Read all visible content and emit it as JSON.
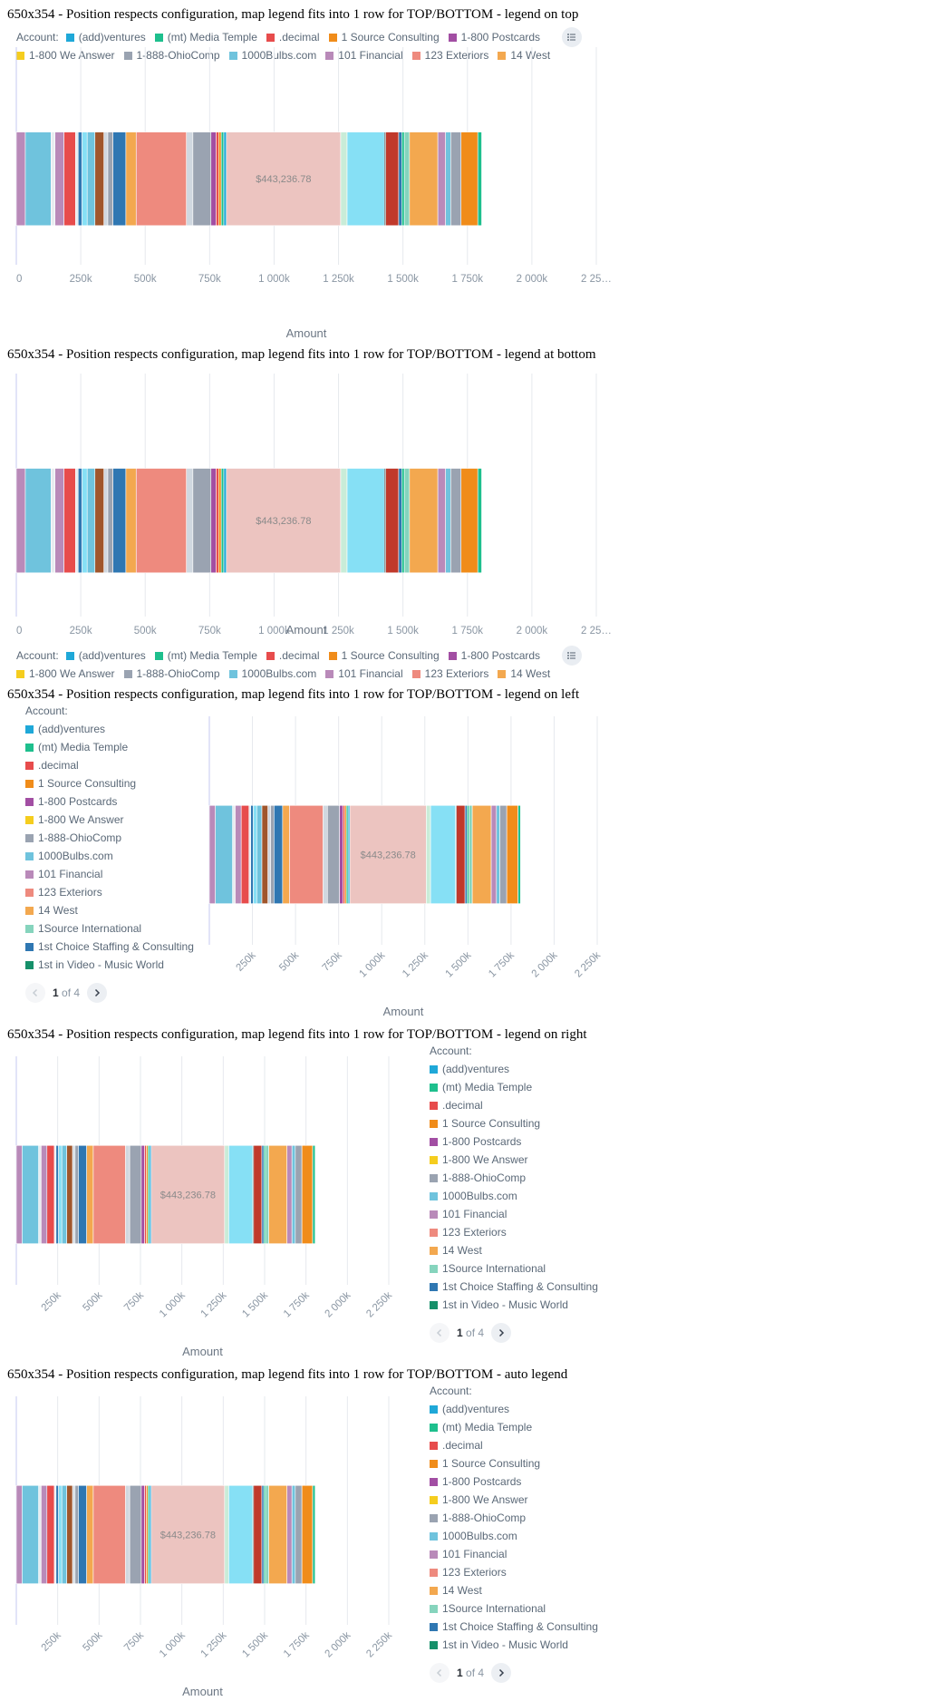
{
  "legend_title": "Account:",
  "colors": [
    "#1fa8d8",
    "#1ebf8d",
    "#e74c4c",
    "#f08c1a",
    "#a24ea3",
    "#f5cd1e",
    "#9aa3b1",
    "#6fc3dd",
    "#b98ab9",
    "#ee8a7e",
    "#f3a84f",
    "#86d4bd",
    "#2f77b2",
    "#16906a"
  ],
  "legend_items": [
    "(add)ventures",
    "(mt) Media Temple",
    ".decimal",
    "1 Source Consulting",
    "1-800 Postcards",
    "1-800 We Answer",
    "1-888-OhioComp",
    "1000Bulbs.com",
    "101 Financial",
    "123 Exteriors",
    "14 West",
    "1Source International",
    "1st Choice Staffing & Consulting",
    "1st in Video - Music World"
  ],
  "legend_items_short": [
    "(add)ventures",
    "(mt) Media Temple",
    ".decimal",
    "1 Source Consulting",
    "1-800 Postcards",
    "1-800 We Answer",
    "1-888-OhioComp",
    "1000Bulbs.com",
    "101 Financial",
    "123 Exteriors",
    "14 West"
  ],
  "pager": {
    "current": "1",
    "of": "of",
    "total": "4"
  },
  "panels": [
    {
      "title": "650x354 - Position respects configuration, map legend fits into 1 row for TOP/BOTTOM - legend on top"
    },
    {
      "title": "650x354 - Position respects configuration, map legend fits into 1 row for TOP/BOTTOM - legend at bottom"
    },
    {
      "title": "650x354 - Position respects configuration, map legend fits into 1 row for TOP/BOTTOM - legend on left"
    },
    {
      "title": "650x354 - Position respects configuration, map legend fits into 1 row for TOP/BOTTOM - legend on right"
    },
    {
      "title": "650x354 - Position respects configuration, map legend fits into 1 row for TOP/BOTTOM - auto legend"
    }
  ],
  "chart_data": {
    "type": "bar",
    "orientation": "horizontal",
    "stacked": true,
    "xlabel": "Amount",
    "xlim": [
      0,
      2250000
    ],
    "ticks_horizontal": [
      "0",
      "250k",
      "500k",
      "750k",
      "1 000k",
      "1 250k",
      "1 500k",
      "1 750k",
      "2 000k",
      "2 25…"
    ],
    "ticks_rotated": [
      "250k",
      "500k",
      "750k",
      "1 000k",
      "1 250k",
      "1 500k",
      "1 750k",
      "2 000k",
      "2 250k"
    ],
    "tick_values": [
      0,
      250000,
      500000,
      750000,
      1000000,
      1250000,
      1500000,
      1750000,
      2000000,
      2250000
    ],
    "data_label": "$443,236.78",
    "segments": [
      {
        "color": "#b98ab9",
        "value": 35000
      },
      {
        "color": "#6fc3dd",
        "value": 100000
      },
      {
        "color": "#e8ecf0",
        "value": 15000
      },
      {
        "color": "#b98ab9",
        "value": 35000
      },
      {
        "color": "#e74c4c",
        "value": 45000
      },
      {
        "color": "#e8ecf0",
        "value": 10000
      },
      {
        "color": "#2f77b2",
        "value": 15000
      },
      {
        "color": "#86e0f5",
        "value": 20000
      },
      {
        "color": "#6fc3dd",
        "value": 30000
      },
      {
        "color": "#a0562c",
        "value": 35000
      },
      {
        "color": "#d0d8e0",
        "value": 15000
      },
      {
        "color": "#9aa3b1",
        "value": 20000
      },
      {
        "color": "#2f77b2",
        "value": 50000
      },
      {
        "color": "#f3a84f",
        "value": 40000
      },
      {
        "color": "#ee8a7e",
        "value": 195000
      },
      {
        "color": "#d0d8e0",
        "value": 25000
      },
      {
        "color": "#9aa3b1",
        "value": 70000
      },
      {
        "color": "#a24ea3",
        "value": 20000
      },
      {
        "color": "#e74c4c",
        "value": 10000
      },
      {
        "color": "#f08c1a",
        "value": 10000
      },
      {
        "color": "#1ebf8d",
        "value": 10000
      },
      {
        "color": "#1fa8d8",
        "value": 10000
      },
      {
        "color": "#ecc4c0",
        "value": 443236.78
      },
      {
        "color": "#c9ecd8",
        "value": 25000
      },
      {
        "color": "#86e0f5",
        "value": 145000
      },
      {
        "color": "#1a1a1a",
        "value": 5000
      },
      {
        "color": "#c0392b",
        "value": 50000
      },
      {
        "color": "#2f77b2",
        "value": 12000
      },
      {
        "color": "#1ebf8d",
        "value": 10000
      },
      {
        "color": "#86d4bd",
        "value": 20000
      },
      {
        "color": "#f3a84f",
        "value": 110000
      },
      {
        "color": "#b98ab9",
        "value": 30000
      },
      {
        "color": "#6fc3dd",
        "value": 20000
      },
      {
        "color": "#9aa3b1",
        "value": 40000
      },
      {
        "color": "#f08c1a",
        "value": 65000
      },
      {
        "color": "#1ebf8d",
        "value": 15000
      }
    ]
  }
}
